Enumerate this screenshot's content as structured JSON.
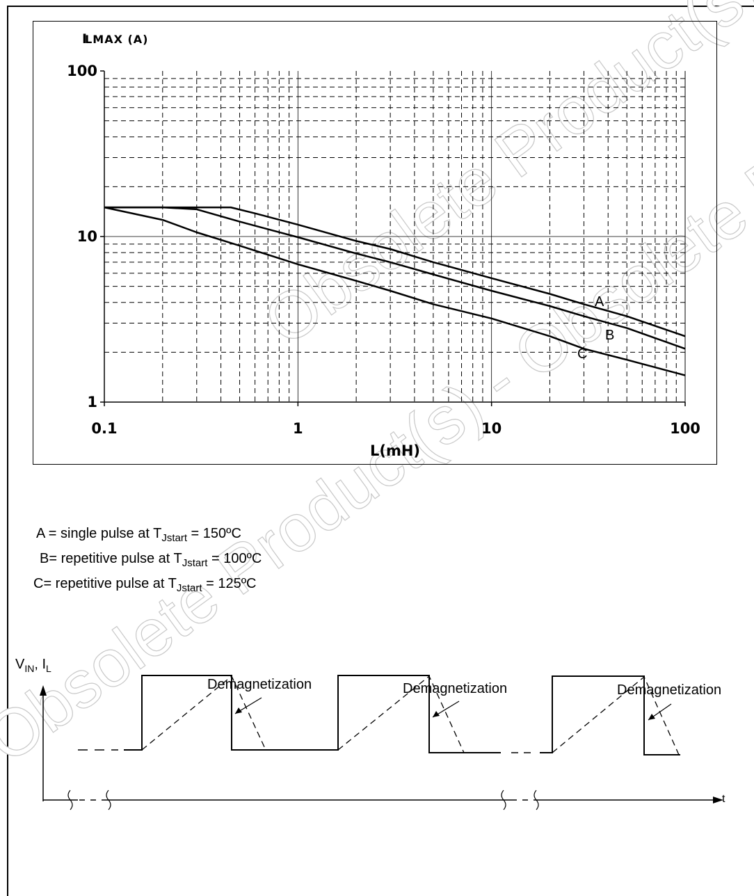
{
  "chart_data": {
    "type": "line",
    "title": "",
    "ylabel_main": "I",
    "ylabel_sub": "LMAX (A)",
    "xlabel": "L(mH)",
    "x_scale": "log",
    "y_scale": "log",
    "xlim": [
      0.1,
      100
    ],
    "ylim": [
      1,
      100
    ],
    "x_ticks": [
      "0.1",
      "1",
      "10",
      "100"
    ],
    "y_ticks": [
      "1",
      "10",
      "100"
    ],
    "grid": true,
    "series": [
      {
        "name": "A",
        "x": [
          0.1,
          0.2,
          0.3,
          0.45,
          0.6,
          1,
          2,
          3,
          5,
          10,
          20,
          30,
          50,
          100
        ],
        "y": [
          15,
          15,
          15,
          15,
          13.8,
          11.8,
          9.4,
          8.4,
          7,
          5.6,
          4.5,
          3.9,
          3.3,
          2.5
        ]
      },
      {
        "name": "B",
        "x": [
          0.1,
          0.2,
          0.3,
          0.5,
          1,
          2,
          3,
          5,
          10,
          20,
          30,
          50,
          100
        ],
        "y": [
          15,
          15,
          14.6,
          12.3,
          9.9,
          7.9,
          7,
          5.9,
          4.7,
          3.8,
          3.3,
          2.8,
          2.1
        ]
      },
      {
        "name": "C",
        "x": [
          0.1,
          0.2,
          0.3,
          0.5,
          1,
          2,
          3,
          5,
          10,
          20,
          30,
          50,
          100
        ],
        "y": [
          15,
          12.6,
          10.6,
          8.8,
          6.8,
          5.4,
          4.7,
          3.9,
          3.2,
          2.5,
          2.1,
          1.8,
          1.45
        ]
      }
    ]
  },
  "legend": {
    "a": {
      "pre": "A = single pulse at T",
      "sub": "Jstart",
      "post": " = 150ºC"
    },
    "b": {
      "pre": "B= repetitive pulse at T",
      "sub": "Jstart",
      "post": " = 100ºC"
    },
    "c": {
      "pre": "C= repetitive pulse at T",
      "sub": "Jstart",
      "post": " = 125ºC"
    }
  },
  "timing": {
    "yaxis_v": "V",
    "yaxis_v_sub": "IN",
    "yaxis_sep": ", I",
    "yaxis_i_sub": "L",
    "xaxis": "t",
    "demag_label": "Demagnetization"
  },
  "watermark": "Obsolete Product(s) - Obsolete Product(s)"
}
